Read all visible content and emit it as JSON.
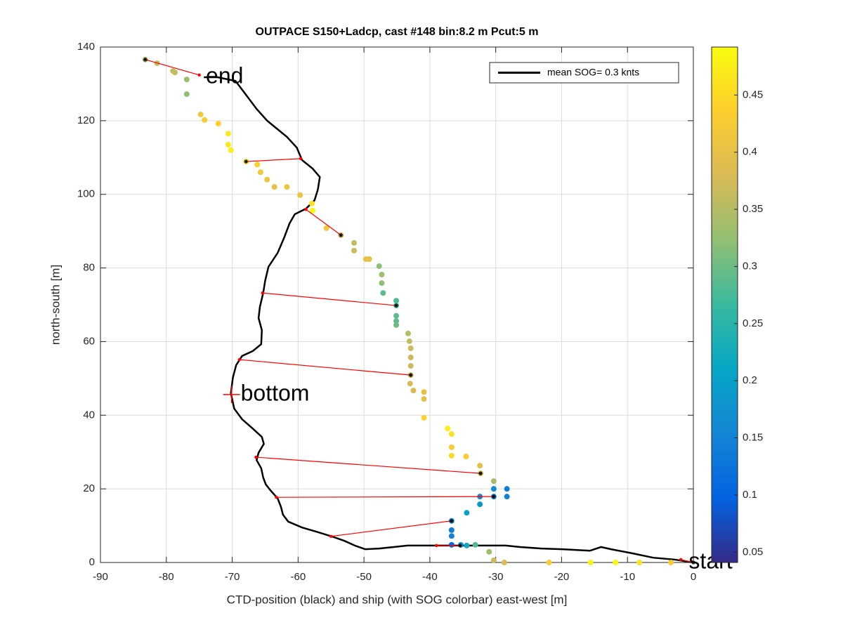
{
  "chart_data": {
    "type": "scatter",
    "title": "OUTPACE S150+Ladcp, cast #148 bin:8.2 m  Pcut:5 m",
    "xlabel": "CTD-position (black) and ship (with SOG colorbar) east-west [m]",
    "ylabel": "north-south [m]",
    "xlim": [
      -90,
      0
    ],
    "ylim": [
      0,
      140
    ],
    "xticks": [
      -90,
      -80,
      -70,
      -60,
      -50,
      -40,
      -30,
      -20,
      -10,
      0
    ],
    "yticks": [
      0,
      20,
      40,
      60,
      80,
      100,
      120,
      140
    ],
    "grid": true,
    "legend": "northeast",
    "series": [
      {
        "name": "mean SOG=  0.3 knts",
        "color": "#000000",
        "x": [
          0,
          -2.9,
          -6.1,
          -9.3,
          -12.5,
          -14.0,
          -15.7,
          -19.9,
          -23.1,
          -26.3,
          -28.5,
          -31.7,
          -39.1,
          -43.4,
          -45.5,
          -47.7,
          -49.8,
          -51.4,
          -53.0,
          -55.1,
          -57.3,
          -59.4,
          -61.5,
          -62.3,
          -62.6,
          -63.1,
          -64.2,
          -64.9,
          -65.3,
          -65.6,
          -66.3,
          -66.0,
          -65.2,
          -65.5,
          -66.9,
          -68.5,
          -69.7,
          -70.2,
          -69.9,
          -69.4,
          -68.5,
          -66.9,
          -65.6,
          -65.5,
          -66.0,
          -65.8,
          -65.3,
          -65.0,
          -64.5,
          -63.1,
          -62.1,
          -61.3,
          -60.5,
          -58.8,
          -57.5,
          -57.0,
          -56.7,
          -57.8,
          -59.4,
          -60.2,
          -61.7,
          -64.7,
          -66.3,
          -67.9,
          -69.5,
          -72.2,
          -74.3
        ],
        "y": [
          0,
          0.8,
          1.3,
          2.5,
          3.6,
          4.2,
          3.2,
          3.6,
          3.8,
          4.2,
          4.6,
          4.6,
          4.6,
          4.6,
          4.2,
          3.8,
          3.6,
          4.6,
          5.9,
          7.2,
          8.4,
          9.5,
          11.1,
          13.0,
          15.1,
          17.4,
          19.6,
          21.2,
          23.1,
          25.6,
          27.8,
          29.8,
          32.2,
          34.1,
          36.4,
          38.9,
          41.8,
          46.0,
          50.2,
          53.6,
          56.1,
          57.4,
          59.3,
          63.1,
          66.4,
          69.4,
          73.2,
          76.5,
          80.3,
          84.1,
          88.3,
          92.1,
          94.6,
          96.1,
          98.4,
          101.3,
          104.7,
          107.0,
          109.3,
          112.7,
          115.6,
          120.0,
          123.2,
          127.0,
          130.8,
          131.8,
          131.8
        ]
      }
    ],
    "ship": {
      "x": [
        -83.2,
        -81.4,
        -79,
        -78.7,
        -76.9,
        -76.9,
        -74.8,
        -74.2,
        -72.1,
        -70.6,
        -70.6,
        -70.2,
        -67.9,
        -66.2,
        -65.7,
        -64.7,
        -63.6,
        -61.7,
        -59.7,
        -57.9,
        -57.8,
        -55.7,
        -53.5,
        -51.5,
        -51.5,
        -49.7,
        -49.2,
        -47.7,
        -47.3,
        -47.3,
        -47.1,
        -45.1,
        -45.1,
        -45.1,
        -45.1,
        -45.1,
        -43.3,
        -43.1,
        -42.9,
        -42.9,
        -42.9,
        -42.9,
        -43,
        -42.5,
        -40.9,
        -40.9,
        -40.9,
        -37.3,
        -36.7,
        -36.7,
        -36.7,
        -34.5,
        -32.4,
        -32.3,
        -30.3,
        -30.3,
        -30.3,
        -28.3,
        -28.3,
        -32.4,
        -32.4,
        -34.4,
        -36.7,
        -36.7,
        -36.7,
        -36.7,
        -35.3,
        -34.4,
        -33.1,
        -31.0,
        -30.3,
        -28.7,
        -21.9,
        -15.6,
        -11.8,
        -8.2,
        -3.4
      ],
      "y": [
        136.6,
        135.6,
        133.5,
        133.1,
        131.2,
        127.2,
        121.7,
        120.2,
        119.2,
        116.5,
        113.5,
        112,
        108.9,
        108.1,
        106,
        104,
        102,
        102,
        99.8,
        97.5,
        95.6,
        90.8,
        88.9,
        86.8,
        84.7,
        82.4,
        82.4,
        80.5,
        78.2,
        75.9,
        73.2,
        71.1,
        69.8,
        67,
        65.6,
        64.5,
        62.2,
        60.1,
        58.2,
        55.7,
        53.4,
        50.9,
        48.6,
        46.7,
        46.3,
        44.4,
        39.3,
        36.4,
        34.9,
        31.3,
        29.0,
        28.8,
        26.3,
        24.2,
        22.1,
        20.0,
        17.9,
        20.0,
        17.9,
        17.9,
        15.8,
        13.5,
        11.3,
        8.8,
        7.2,
        4.8,
        4.8,
        4.6,
        4.8,
        2.9,
        0.6,
        0,
        0,
        0,
        0,
        0,
        0
      ],
      "values": [
        0.35,
        0.36,
        0.36,
        0.36,
        0.33,
        0.32,
        0.42,
        0.43,
        0.44,
        0.47,
        0.47,
        0.48,
        0.46,
        0.44,
        0.42,
        0.41,
        0.4,
        0.41,
        0.41,
        0.46,
        0.49,
        0.42,
        0.38,
        0.36,
        0.37,
        0.4,
        0.4,
        0.32,
        0.33,
        0.32,
        0.29,
        0.28,
        0.28,
        0.29,
        0.29,
        0.3,
        0.35,
        0.36,
        0.37,
        0.37,
        0.37,
        0.37,
        0.38,
        0.38,
        0.4,
        0.4,
        0.44,
        0.48,
        0.46,
        0.43,
        0.45,
        0.43,
        0.4,
        0.39,
        0.34,
        0.16,
        0.15,
        0.14,
        0.15,
        0.16,
        0.18,
        0.2,
        0.17,
        0.14,
        0.15,
        0.1,
        0.17,
        0.22,
        0.28,
        0.33,
        0.37,
        0.38,
        0.43,
        0.48,
        0.49,
        0.46,
        0.43
      ]
    },
    "links": {
      "color": "#ff0000",
      "items": [
        {
          "ship_x": -83.2,
          "ship_y": 136.6,
          "ctd_x": -75,
          "ctd_y": 132.4
        },
        {
          "ship_x": -67.9,
          "ship_y": 108.9,
          "ctd_x": -59.6,
          "ctd_y": 109.7
        },
        {
          "ship_x": -53.5,
          "ship_y": 88.9,
          "ctd_x": -58.8,
          "ctd_y": 95.9
        },
        {
          "ship_x": -45.1,
          "ship_y": 69.8,
          "ctd_x": -65.4,
          "ctd_y": 73.2
        },
        {
          "ship_x": -42.9,
          "ship_y": 50.9,
          "ctd_x": -68.9,
          "ctd_y": 55.1
        },
        {
          "ship_x": -32.3,
          "ship_y": 24.2,
          "ctd_x": -66.4,
          "ctd_y": 28.6
        },
        {
          "ship_x": -30.3,
          "ship_y": 17.9,
          "ctd_x": -63.3,
          "ctd_y": 17.7
        },
        {
          "ship_x": -36.7,
          "ship_y": 11.3,
          "ctd_x": -55,
          "ctd_y": 7.1
        },
        {
          "ship_x": -35.4,
          "ship_y": 4.6,
          "ctd_x": -39,
          "ctd_y": 4.6
        },
        {
          "ship_x": 0,
          "ship_y": 0,
          "ctd_x": -1.9,
          "ctd_y": 0.8
        }
      ]
    },
    "annotations": [
      {
        "text": "end",
        "x": -74.0,
        "y": 131.8
      },
      {
        "text": "bottom",
        "x": -70.1,
        "y": 45.6,
        "marker": "+",
        "marker_color": "#ff0000"
      },
      {
        "text": "start",
        "x": -0.7,
        "y": 0
      }
    ],
    "colorbar": {
      "clim": [
        0.041,
        0.492
      ],
      "ticks": [
        0.05,
        0.1,
        0.15,
        0.2,
        0.25,
        0.3,
        0.35,
        0.4,
        0.45
      ],
      "colormap": [
        "#352a87",
        "#0363e1",
        "#1485d4",
        "#06a7c6",
        "#38b99e",
        "#92bf73",
        "#d9ba56",
        "#fcce2e",
        "#f9fb0e"
      ]
    }
  }
}
